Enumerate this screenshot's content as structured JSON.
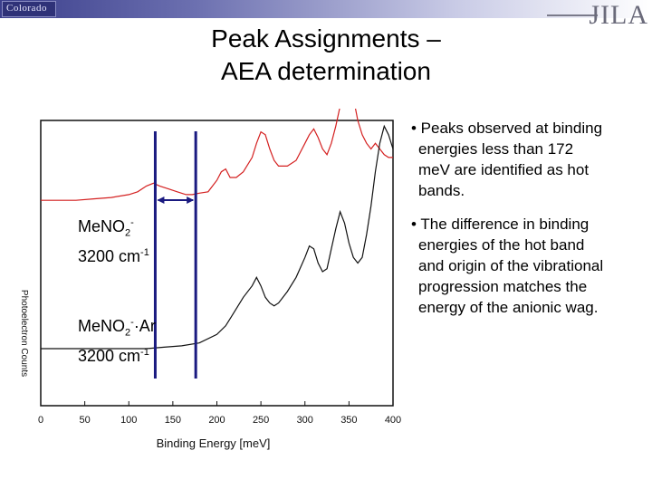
{
  "header": {
    "logo_left": "Colorado",
    "logo_right": "JILA"
  },
  "title_lines": [
    "Peak Assignments –",
    "AEA determination"
  ],
  "labels": {
    "upper_species": "MeNO",
    "upper_sub": "2",
    "upper_sup": "-",
    "upper_freq": "3200 cm",
    "upper_freq_sup": "-1",
    "lower_species": "MeNO",
    "lower_sub": "2",
    "lower_sup": "-",
    "lower_suffix": "·Ar",
    "lower_freq": "3200 cm",
    "lower_freq_sup": "-1"
  },
  "bullets": [
    [
      "• Peaks observed at binding",
      "energies less than 172",
      "meV are identified as hot",
      "bands."
    ],
    [
      "• The difference in binding",
      "energies of the hot band",
      "and origin of the vibrational",
      "progression matches the",
      "energy of the anionic wag."
    ]
  ],
  "chart_data": {
    "type": "line",
    "xlabel": "Binding Energy [meV]",
    "ylabel": "Photoelectron Counts",
    "xlim": [
      0,
      400
    ],
    "x_ticks": [
      0,
      50,
      100,
      150,
      200,
      250,
      300,
      350,
      400
    ],
    "markers_x": [
      130,
      176
    ],
    "colors": {
      "upper": "#d42020",
      "lower": "#111111",
      "markers": "#1a1a80"
    },
    "series": [
      {
        "x": [
          0,
          20,
          40,
          60,
          80,
          100,
          110,
          120,
          128,
          135,
          145,
          155,
          165,
          172,
          180,
          190,
          200,
          205,
          210,
          215,
          222,
          230,
          240,
          245,
          250,
          255,
          260,
          265,
          270,
          280,
          290,
          300,
          305,
          310,
          315,
          320,
          325,
          330,
          335,
          340,
          345,
          350,
          355,
          360,
          365,
          370,
          375,
          380,
          385,
          390,
          395,
          400
        ],
        "y": [
          0.72,
          0.72,
          0.72,
          0.725,
          0.73,
          0.74,
          0.75,
          0.77,
          0.78,
          0.77,
          0.76,
          0.75,
          0.74,
          0.74,
          0.745,
          0.75,
          0.79,
          0.82,
          0.83,
          0.8,
          0.8,
          0.82,
          0.87,
          0.92,
          0.96,
          0.95,
          0.9,
          0.86,
          0.84,
          0.84,
          0.86,
          0.92,
          0.95,
          0.97,
          0.94,
          0.9,
          0.88,
          0.92,
          0.98,
          1.05,
          1.12,
          1.15,
          1.08,
          1.0,
          0.95,
          0.92,
          0.9,
          0.92,
          0.9,
          0.88,
          0.87,
          0.87
        ]
      },
      {
        "x": [
          0,
          20,
          40,
          60,
          80,
          100,
          120,
          140,
          160,
          180,
          200,
          210,
          220,
          230,
          240,
          245,
          250,
          255,
          260,
          265,
          270,
          280,
          290,
          300,
          305,
          310,
          315,
          320,
          325,
          330,
          335,
          340,
          345,
          350,
          355,
          360,
          365,
          370,
          375,
          380,
          385,
          390,
          395,
          400
        ],
        "y": [
          0.2,
          0.2,
          0.2,
          0.2,
          0.2,
          0.2,
          0.2,
          0.205,
          0.21,
          0.22,
          0.25,
          0.28,
          0.33,
          0.38,
          0.42,
          0.45,
          0.42,
          0.38,
          0.36,
          0.35,
          0.36,
          0.4,
          0.45,
          0.52,
          0.56,
          0.55,
          0.5,
          0.47,
          0.48,
          0.55,
          0.62,
          0.68,
          0.64,
          0.57,
          0.52,
          0.5,
          0.52,
          0.6,
          0.7,
          0.82,
          0.92,
          0.98,
          0.95,
          0.9
        ]
      }
    ]
  }
}
